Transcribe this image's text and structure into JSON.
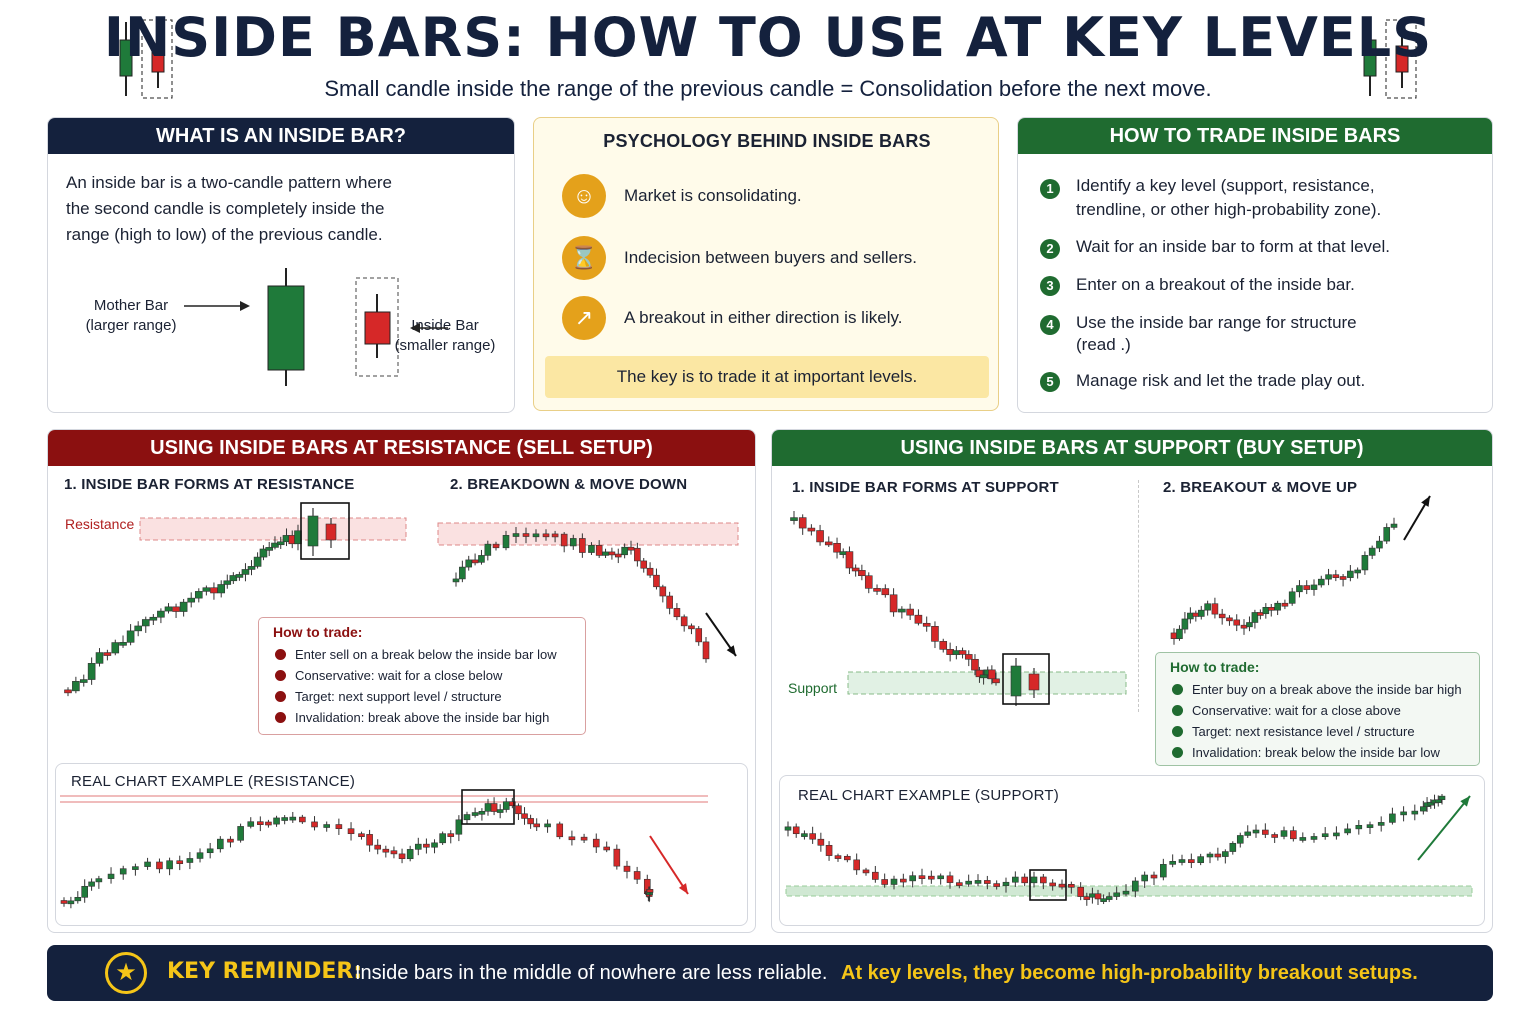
{
  "header": {
    "title": "INSIDE BARS: HOW TO USE AT KEY LEVELS",
    "subtitle": "Small candle inside the range of the previous candle = Consolidation before the next move."
  },
  "what": {
    "heading": "WHAT IS AN INSIDE BAR?",
    "text": [
      "An inside bar is a two-candle pattern where",
      "the second candle is completely inside the",
      "range (high to low) of the previous candle."
    ],
    "mother_label": [
      "Mother Bar",
      "(larger range)"
    ],
    "inside_label": [
      "Inside Bar",
      "(smaller range)"
    ]
  },
  "psychology": {
    "heading": "PSYCHOLOGY BEHIND INSIDE BARS",
    "items": [
      {
        "icon": "people-icon",
        "text": "Market is consolidating."
      },
      {
        "icon": "hourglass-icon",
        "text": "Indecision between buyers and sellers."
      },
      {
        "icon": "growth-chart-icon",
        "text": "A breakout in either direction is likely."
      }
    ],
    "key_note": "The key is to trade it at important levels."
  },
  "how_to_trade": {
    "heading": "HOW TO TRADE INSIDE BARS",
    "steps": [
      {
        "n": "1",
        "text": [
          "Identify a key level (support, resistance,",
          "trendline, or other high-probability zone)."
        ]
      },
      {
        "n": "2",
        "text": [
          "Wait for an inside bar to form at that level."
        ]
      },
      {
        "n": "3",
        "text": [
          "Enter on a breakout of the inside bar."
        ]
      },
      {
        "n": "4",
        "text": [
          "Use the inside bar range for structure",
          "(read .)"
        ]
      },
      {
        "n": "5",
        "text": [
          "Manage risk and let the trade play out."
        ]
      }
    ]
  },
  "resistance": {
    "heading": "USING INSIDE BARS AT RESISTANCE (SELL SETUP)",
    "step1": "1. INSIDE BAR FORMS AT RESISTANCE",
    "step2": "2. BREAKDOWN & MOVE DOWN",
    "level_label": "Resistance",
    "how_title": "How to trade:",
    "how_items": [
      "Enter sell on a break below the inside bar low",
      "Conservative: wait for a close below",
      "Target: next support level / structure",
      "Invalidation: break above the inside bar high"
    ],
    "real_title": "REAL CHART EXAMPLE (RESISTANCE)"
  },
  "support": {
    "heading": "USING INSIDE BARS AT SUPPORT (BUY SETUP)",
    "step1": "1. INSIDE BAR FORMS AT SUPPORT",
    "step2": "2. BREAKOUT & MOVE UP",
    "level_label": "Support",
    "how_title": "How to trade:",
    "how_items": [
      "Enter buy on a break above the inside bar high",
      "Conservative: wait for a close above",
      "Target: next resistance level / structure",
      "Invalidation: break below the inside bar low"
    ],
    "real_title": "REAL CHART EXAMPLE (SUPPORT)"
  },
  "reminder": {
    "label": "KEY REMINDER:",
    "text": "Inside bars in the middle of nowhere are less reliable.",
    "highlight": "At key levels, they become high-probability breakout setups."
  },
  "colors": {
    "navy": "#14213d",
    "bull": "#1f7a3a",
    "bear": "#d62828",
    "gold": "#e4a11b",
    "reminder_gold": "#f5c518"
  }
}
